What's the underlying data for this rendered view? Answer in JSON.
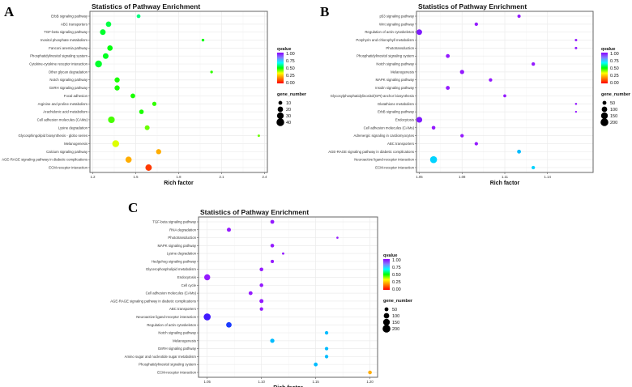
{
  "colors": {
    "grid": "#ebebeb",
    "frame": "#666666",
    "rainbow": [
      "#ff0000",
      "#ff8000",
      "#ffff00",
      "#00ff00",
      "#00ffff",
      "#8080ff",
      "#8b00ff"
    ]
  },
  "chart_data": [
    {
      "panel": "A",
      "type": "scatter",
      "title": "Statistics of Pathway Enrichment",
      "xlabel": "Rich factor",
      "xlim": [
        1.18,
        2.42
      ],
      "xticks": [
        1.2,
        1.5,
        1.8,
        2.1,
        2.4
      ],
      "xtick_labels": [
        "1.2",
        "1.5",
        "1.8",
        "2.1",
        "2.4"
      ],
      "categories": [
        "ErbB signaling pathway",
        "ABC transporters",
        "TGF-beta signaling pathway",
        "Inositol phosphate metabolism",
        "Fanconi anemia pathway",
        "Phosphatidylinositol signaling system",
        "Cytokine-cytokine receptor interaction",
        "Other glycan degradation",
        "Notch signaling pathway",
        "GnRH signaling pathway",
        "Focal adhesion",
        "Arginine and proline metabolism",
        "Arachidonic acid metabolism",
        "Cell adhesion molecules (CAMs)",
        "Lysine degradation",
        "Glycosphingolipid biosynthesis - globo series",
        "Melanogenesis",
        "Calcium signaling pathway",
        "AGE-RAGE signaling pathway in diabetic complications",
        "ECM-receptor interaction"
      ],
      "rich_factor": [
        1.52,
        1.31,
        1.27,
        1.97,
        1.32,
        1.29,
        1.24,
        2.03,
        1.37,
        1.37,
        1.48,
        1.63,
        1.54,
        1.33,
        1.58,
        2.36,
        1.36,
        1.66,
        1.45,
        1.59
      ],
      "qvalue": [
        0.55,
        0.5,
        0.48,
        0.45,
        0.45,
        0.47,
        0.48,
        0.4,
        0.42,
        0.42,
        0.42,
        0.4,
        0.42,
        0.38,
        0.35,
        0.35,
        0.25,
        0.15,
        0.15,
        0.05
      ],
      "gene_number": [
        10,
        20,
        22,
        5,
        20,
        22,
        32,
        5,
        18,
        18,
        15,
        12,
        14,
        30,
        16,
        4,
        32,
        18,
        26,
        28
      ],
      "legend": {
        "color_title": "qvalue",
        "color_ticks": [
          "1.00",
          "0.75",
          "0.50",
          "0.25",
          "0.00"
        ],
        "size_title": "gene_number",
        "size_values": [
          10,
          20,
          30,
          40
        ],
        "size_labels": [
          "10",
          "20",
          "30",
          "40"
        ]
      },
      "size_scale": 0.75
    },
    {
      "panel": "B",
      "type": "scatter",
      "title": "Statistics of Pathway Enrichment",
      "xlabel": "Rich factor",
      "xlim": [
        1.048,
        1.172
      ],
      "xticks": [
        1.05,
        1.08,
        1.11,
        1.14
      ],
      "xtick_labels": [
        "1.05",
        "1.08",
        "1.11",
        "1.14"
      ],
      "categories": [
        "p53 signaling pathway",
        "Wnt signaling pathway",
        "Regulation of actin cytoskeleton",
        "Porphyrin and chlorophyll metabolism",
        "Phototransduction",
        "Phosphatidylinositol signaling system",
        "Notch signaling pathway",
        "Melanogenesis",
        "MAPK signaling pathway",
        "Insulin signaling pathway",
        "Glycosylphosphatidylinositol(GPI)-anchor biosynthesis",
        "Glutathione metabolism",
        "ErbB signaling pathway",
        "Endocytosis",
        "Cell adhesion molecules (CAMs)",
        "Adrenergic signaling in cardiomyocytes",
        "ABC transporters",
        "AGE-RAGE signaling pathway in diabetic complications",
        "Neuroactive ligand-receptor interaction",
        "ECM-receptor interaction"
      ],
      "rich_factor": [
        1.12,
        1.09,
        1.05,
        1.16,
        1.16,
        1.07,
        1.13,
        1.08,
        1.1,
        1.07,
        1.11,
        1.16,
        1.16,
        1.05,
        1.06,
        1.08,
        1.09,
        1.12,
        1.06,
        1.13
      ],
      "qvalue": [
        1,
        1,
        0.98,
        1,
        1,
        1,
        1,
        1,
        1,
        1,
        1,
        1,
        1,
        0.98,
        1,
        1,
        1,
        0.72,
        0.7,
        0.7
      ],
      "gene_number": [
        35,
        40,
        100,
        20,
        20,
        50,
        40,
        60,
        40,
        50,
        30,
        15,
        12,
        110,
        45,
        40,
        40,
        50,
        160,
        40
      ],
      "legend": {
        "color_title": "qvalue",
        "color_ticks": [
          "1.00",
          "0.75",
          "0.50",
          "0.25",
          "0.00"
        ],
        "size_title": "gene_number",
        "size_values": [
          50,
          100,
          150,
          200
        ],
        "size_labels": [
          "50",
          "100",
          "150",
          "200"
        ]
      },
      "size_scale": 0.34
    },
    {
      "panel": "C",
      "type": "scatter",
      "title": "Statistics of Pathway Enrichment",
      "xlabel": "Rich factor",
      "xlim": [
        1.042,
        1.207
      ],
      "xticks": [
        1.05,
        1.1,
        1.15,
        1.2
      ],
      "xtick_labels": [
        "1.05",
        "1.10",
        "1.15",
        "1.20"
      ],
      "categories": [
        "TGF-beta signaling pathway",
        "RNA degradation",
        "Phototransduction",
        "MAPK signaling pathway",
        "Lysine degradation",
        "Hedgehog signaling pathway",
        "Glycerophospholipid metabolism",
        "Endocytosis",
        "Cell cycle",
        "Cell adhesion molecules (CAMs)",
        "AGE-RAGE signaling pathway in diabetic complications",
        "ABC transporters",
        "Neuroactive ligand-receptor interaction",
        "Regulation of actin cytoskeleton",
        "Notch signaling pathway",
        "Melanogenesis",
        "GnRH signaling pathway",
        "Amino sugar and nucleotide sugar metabolism",
        "Phosphatidylinositol signaling system",
        "ECM-receptor interaction"
      ],
      "rich_factor": [
        1.11,
        1.07,
        1.17,
        1.11,
        1.12,
        1.11,
        1.1,
        1.05,
        1.1,
        1.09,
        1.1,
        1.1,
        1.05,
        1.07,
        1.16,
        1.11,
        1.16,
        1.16,
        1.15,
        1.2
      ],
      "qvalue": [
        1,
        1,
        1,
        1,
        1,
        1,
        1,
        1,
        1,
        1,
        1,
        1,
        0.92,
        0.85,
        0.72,
        0.72,
        0.72,
        0.72,
        0.72,
        0.15
      ],
      "gene_number": [
        50,
        55,
        15,
        45,
        18,
        35,
        45,
        120,
        45,
        50,
        55,
        40,
        160,
        100,
        40,
        60,
        40,
        40,
        50,
        45
      ],
      "legend": {
        "color_title": "qvalue",
        "color_ticks": [
          "1.00",
          "0.75",
          "0.50",
          "0.25",
          "0.00"
        ],
        "size_title": "gene_number",
        "size_values": [
          50,
          100,
          150,
          200
        ],
        "size_labels": [
          "50",
          "100",
          "150",
          "200"
        ]
      },
      "size_scale": 0.34
    }
  ]
}
